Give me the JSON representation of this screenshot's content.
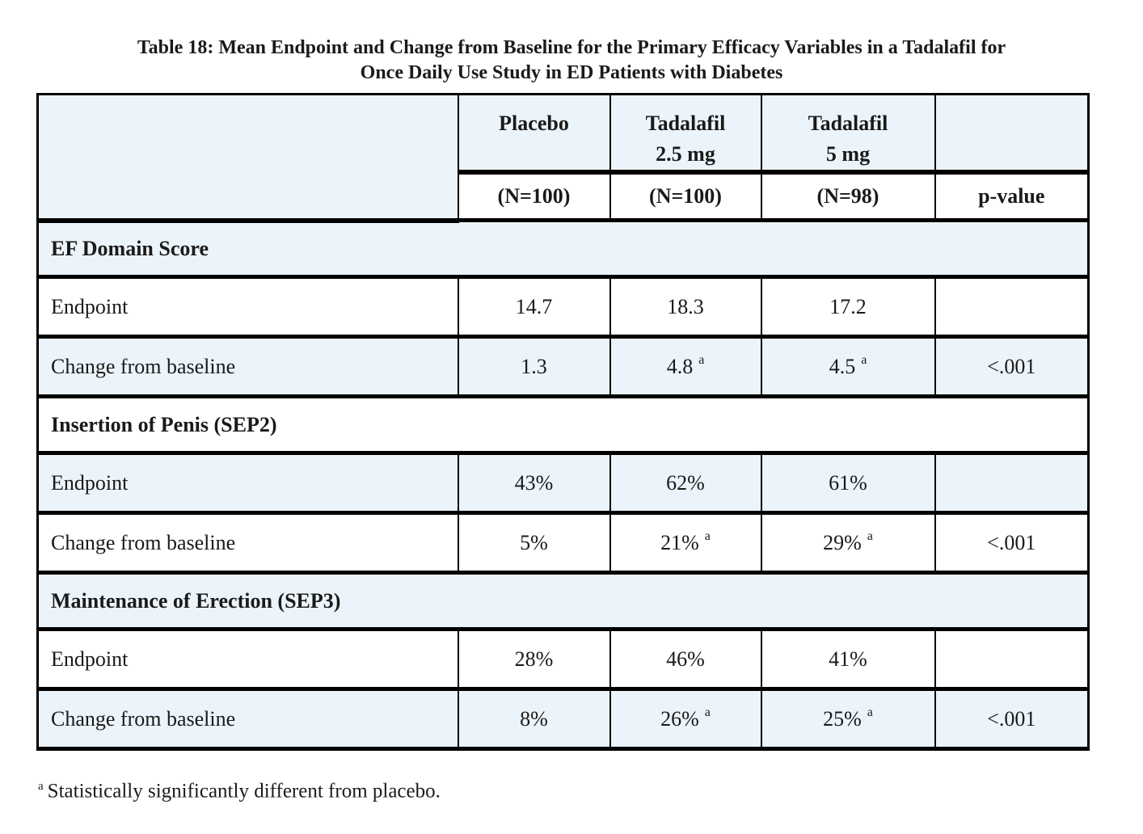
{
  "title": {
    "line1": "Table 18: Mean Endpoint and Change from Baseline for the Primary Efficacy Variables in a Tadalafil for",
    "line2": "Once Daily Use Study in ED Patients with Diabetes"
  },
  "header": {
    "placebo": "Placebo",
    "t25_line1": "Tadalafil",
    "t25_line2": "2.5 mg",
    "t5_line1": "Tadalafil",
    "t5_line2": "5 mg",
    "n_placebo": "(N=100)",
    "n_t25": "(N=100)",
    "n_t5": "(N=98)",
    "pvalue_label": "p-value"
  },
  "sections": [
    {
      "name": "EF Domain Score",
      "rows": [
        {
          "label": "Endpoint",
          "c1": "14.7",
          "c2": "18.3",
          "c2s": "",
          "c3": "17.2",
          "c3s": "",
          "p": ""
        },
        {
          "label": "Change from baseline",
          "c1": "1.3",
          "c2": "4.8",
          "c2s": "a",
          "c3": "4.5",
          "c3s": "a",
          "p": "<.001"
        }
      ]
    },
    {
      "name": "Insertion of Penis (SEP2)",
      "rows": [
        {
          "label": "Endpoint",
          "c1": "43%",
          "c2": "62%",
          "c2s": "",
          "c3": "61%",
          "c3s": "",
          "p": ""
        },
        {
          "label": "Change from baseline",
          "c1": "5%",
          "c2": "21%",
          "c2s": "a",
          "c3": "29%",
          "c3s": "a",
          "p": "<.001"
        }
      ]
    },
    {
      "name": "Maintenance of Erection (SEP3)",
      "rows": [
        {
          "label": "Endpoint",
          "c1": "28%",
          "c2": "46%",
          "c2s": "",
          "c3": "41%",
          "c3s": "",
          "p": ""
        },
        {
          "label": "Change from baseline",
          "c1": "8%",
          "c2": "26%",
          "c2s": "a",
          "c3": "25%",
          "c3s": "a",
          "p": "<.001"
        }
      ]
    }
  ],
  "footnote": {
    "marker": "a",
    "text": "Statistically significantly different from placebo."
  },
  "colors": {
    "band_blue": "#ecf4fb",
    "border_black": "#000000",
    "text": "#1a1a1a"
  }
}
